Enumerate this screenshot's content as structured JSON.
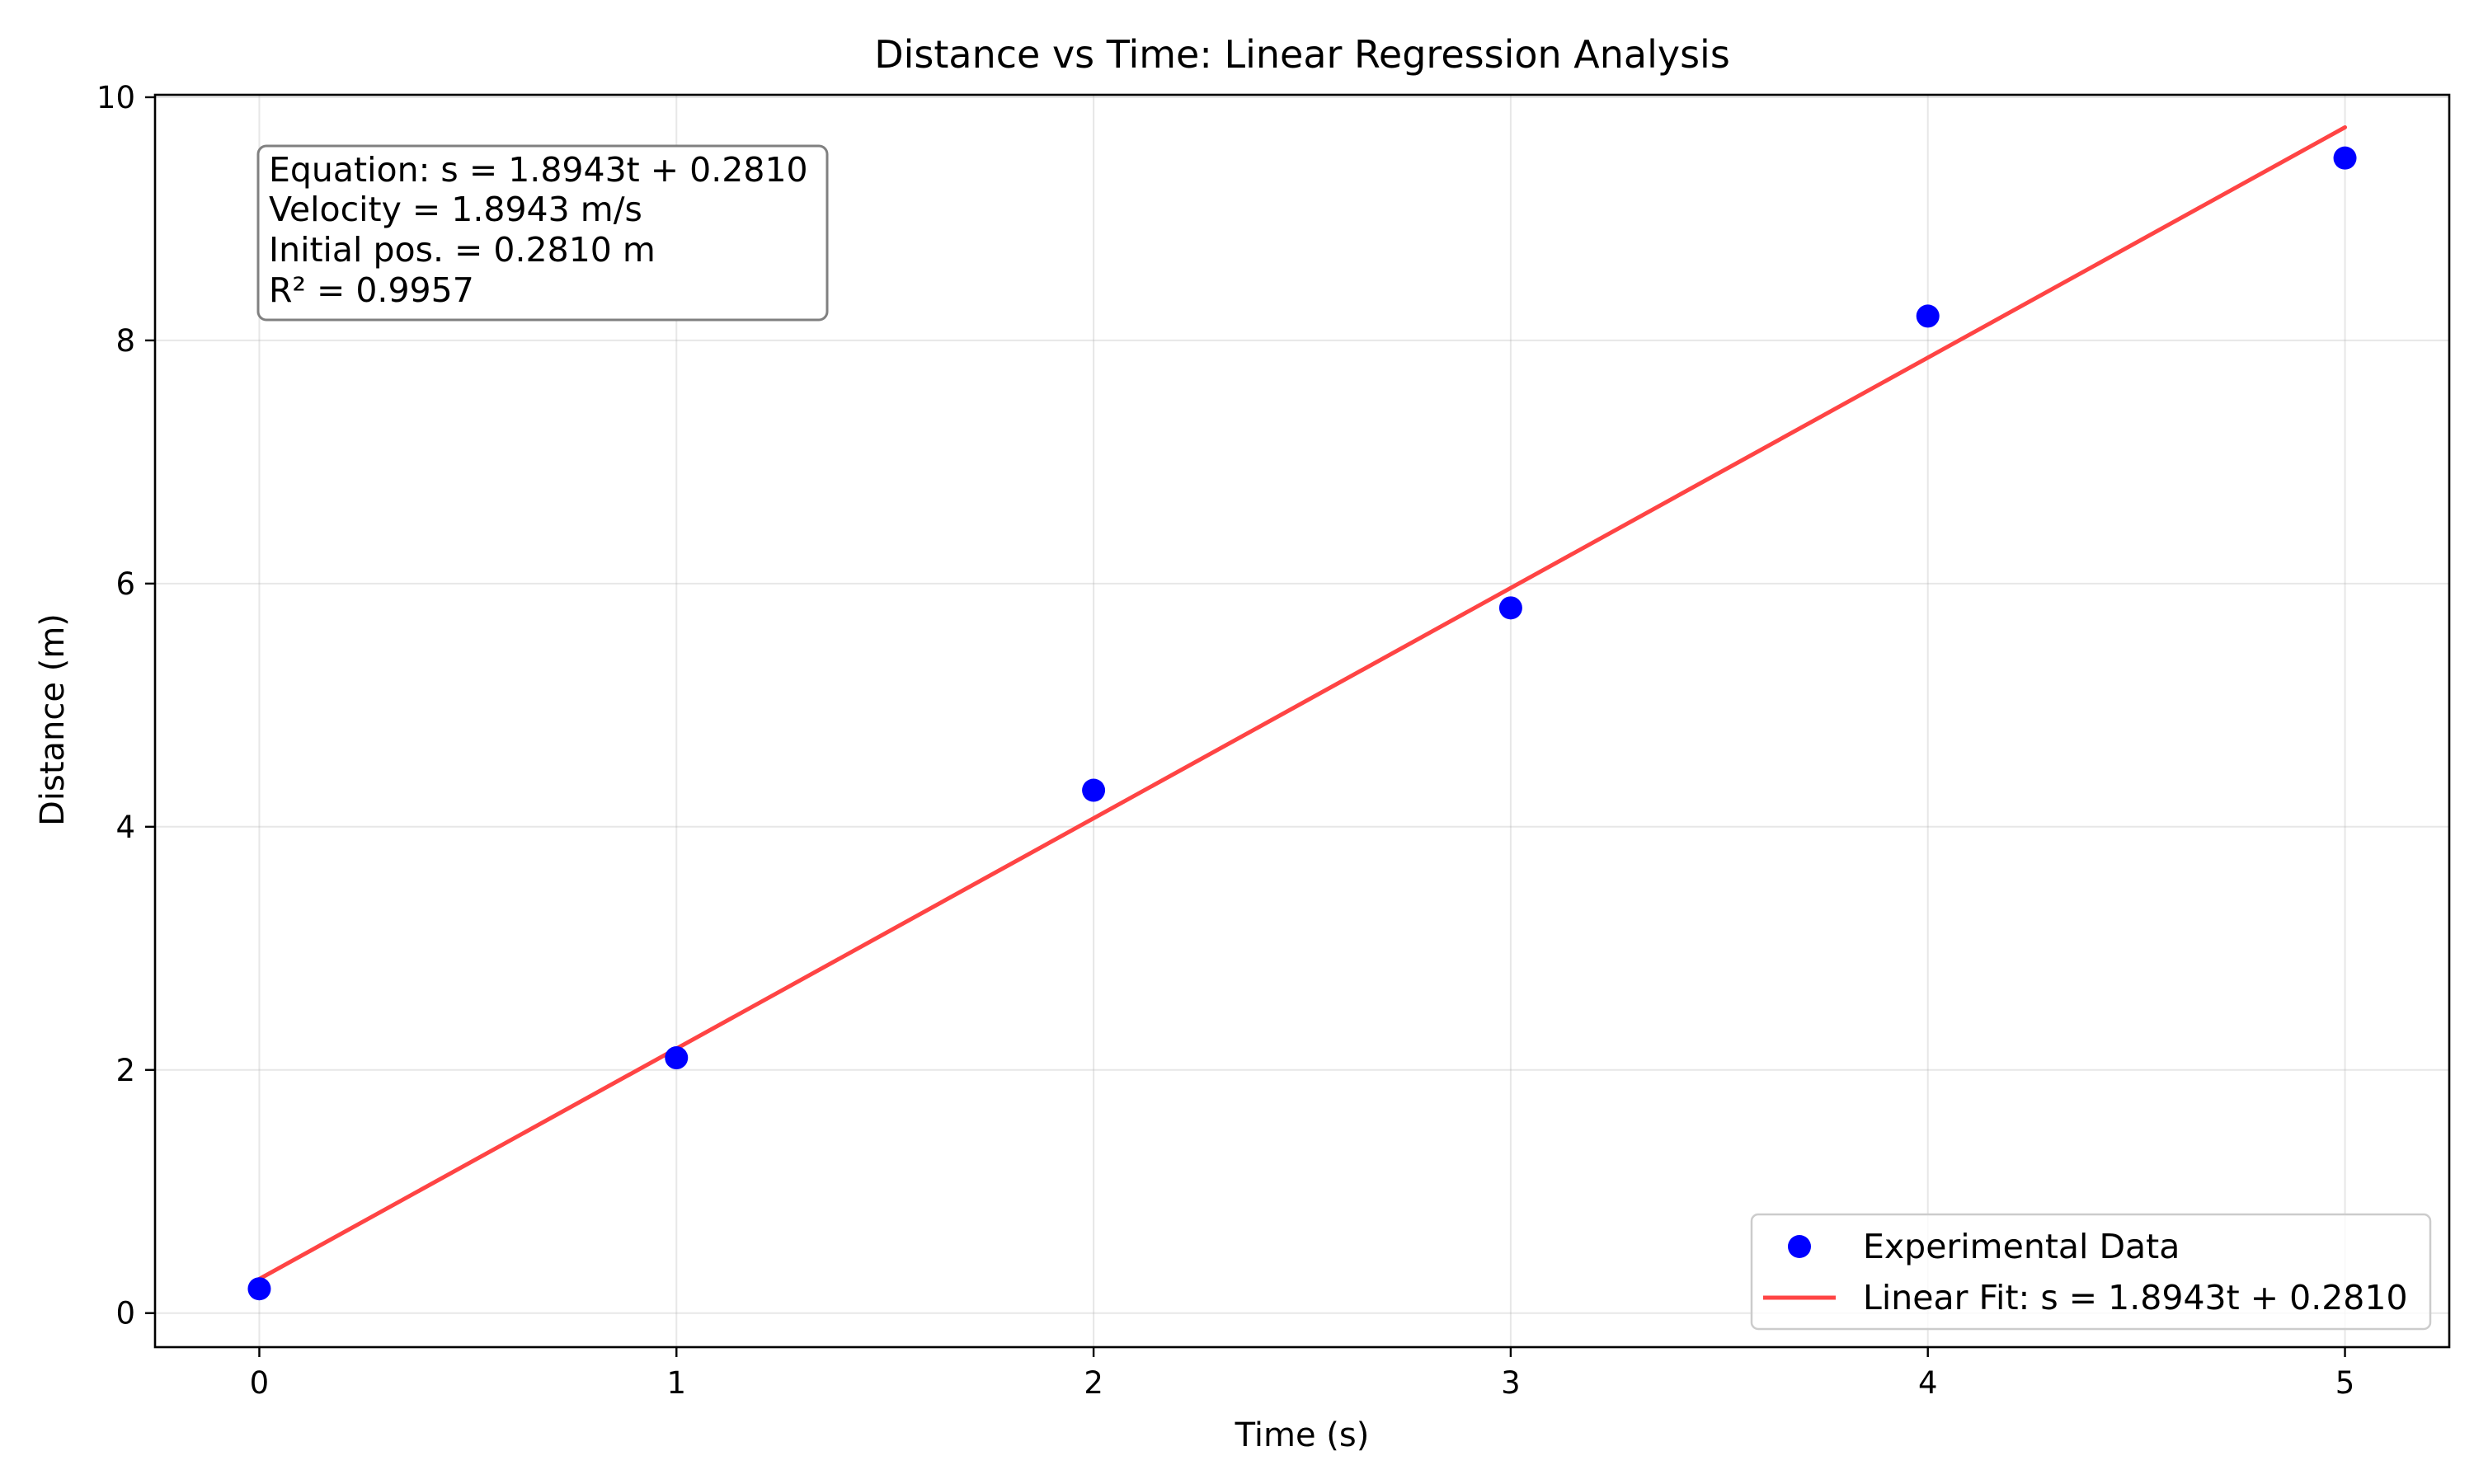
{
  "chart_data": {
    "type": "scatter",
    "title": "Distance vs Time: Linear Regression Analysis",
    "xlabel": "Time (s)",
    "ylabel": "Distance (m)",
    "xlim": [
      -0.25,
      5.25
    ],
    "ylim": [
      -0.28,
      10.02
    ],
    "xticks": [
      0,
      1,
      2,
      3,
      4,
      5
    ],
    "yticks": [
      0,
      2,
      4,
      6,
      8,
      10
    ],
    "grid": true,
    "legend_position": "lower right",
    "series": [
      {
        "name": "Experimental Data",
        "kind": "scatter",
        "color": "#0000ff",
        "x": [
          0,
          1,
          2,
          3,
          4,
          5
        ],
        "y": [
          0.2,
          2.1,
          4.3,
          5.8,
          8.2,
          9.5
        ]
      },
      {
        "name": "Linear Fit: s = 1.8943t + 0.2810",
        "kind": "line",
        "color": "#ff4444",
        "slope": 1.8943,
        "intercept": 0.281,
        "x_range": [
          0,
          5
        ]
      }
    ],
    "annotation_lines": [
      "Equation: s = 1.8943t + 0.2810",
      "Velocity = 1.8943 m/s",
      "Initial pos. = 0.2810 m",
      "R² = 0.9957"
    ]
  }
}
